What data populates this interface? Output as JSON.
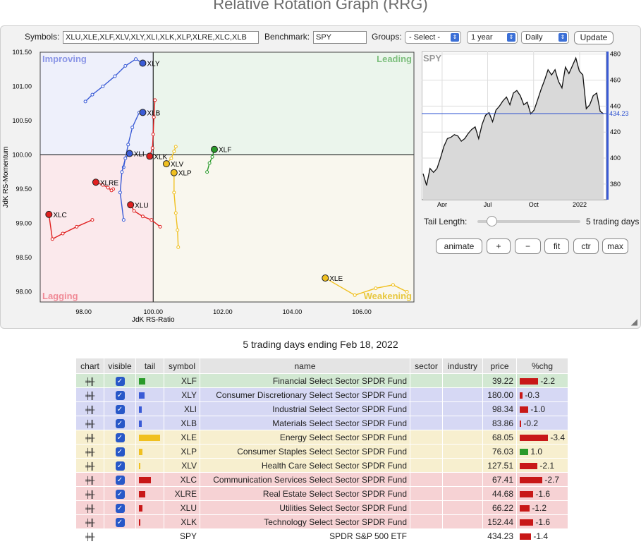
{
  "title": "Relative Rotation Graph (RRG)",
  "controls": {
    "symbols_label": "Symbols:",
    "symbols_value": "XLU,XLE,XLF,XLV,XLY,XLI,XLK,XLP,XLRE,XLC,XLB",
    "benchmark_label": "Benchmark:",
    "benchmark_value": "SPY",
    "groups_label": "Groups:",
    "groups_value": "- Select -",
    "period_value": "1 year",
    "frequency_value": "Daily",
    "update_label": "Update"
  },
  "chart_data": [
    {
      "type": "scatter",
      "title": "",
      "xlabel": "JdK RS-Ratio",
      "ylabel": "JdK RS-Momentum",
      "xlim": [
        96.75,
        107.5
      ],
      "ylim": [
        97.85,
        101.5
      ],
      "xticks": [
        "98.00",
        "100.00",
        "102.00",
        "104.00",
        "106.00"
      ],
      "yticks": [
        "101.50",
        "101.00",
        "100.50",
        "100.00",
        "99.50",
        "99.00",
        "98.50",
        "98.00"
      ],
      "quadrants": {
        "top_left": "Improving",
        "top_right": "Leading",
        "bottom_left": "Lagging",
        "bottom_right": "Weakening"
      },
      "quadrant_colors": {
        "improving": "#eef0fb",
        "leading": "#ebf5ec",
        "lagging": "#fbe9ec",
        "weakening": "#f9f7ee"
      },
      "series": [
        {
          "name": "XLY",
          "color": "#3a5bd6",
          "label": "XLY",
          "points": [
            [
              98.05,
              100.78
            ],
            [
              98.25,
              100.88
            ],
            [
              98.55,
              101.0
            ],
            [
              98.9,
              101.15
            ],
            [
              99.2,
              101.3
            ],
            [
              99.5,
              101.4
            ],
            [
              99.7,
              101.34
            ]
          ]
        },
        {
          "name": "XLB",
          "color": "#3a5bd6",
          "label": "XLB",
          "points": [
            [
              99.15,
              99.82
            ],
            [
              99.28,
              100.15
            ],
            [
              99.4,
              100.4
            ],
            [
              99.6,
              100.62
            ],
            [
              99.7,
              100.62
            ]
          ]
        },
        {
          "name": "XLI",
          "color": "#3a5bd6",
          "label": "XLI",
          "points": [
            [
              99.15,
              99.05
            ],
            [
              99.05,
              99.45
            ],
            [
              99.1,
              99.75
            ],
            [
              99.2,
              99.95
            ],
            [
              99.32,
              100.02
            ]
          ]
        },
        {
          "name": "XLK",
          "color": "#e02020",
          "label": "XLK",
          "points": [
            [
              100.05,
              100.8
            ],
            [
              100.02,
              100.55
            ],
            [
              100.0,
              100.3
            ],
            [
              99.98,
              100.1
            ],
            [
              99.9,
              99.98
            ]
          ]
        },
        {
          "name": "XLU",
          "color": "#e02020",
          "label": "XLU",
          "points": [
            [
              100.2,
              98.95
            ],
            [
              99.95,
              99.05
            ],
            [
              99.7,
              99.1
            ],
            [
              99.45,
              99.18
            ],
            [
              99.35,
              99.27
            ]
          ]
        },
        {
          "name": "XLRE",
          "color": "#e02020",
          "label": "XLRE",
          "points": [
            [
              98.85,
              99.5
            ],
            [
              98.8,
              99.48
            ],
            [
              98.7,
              99.52
            ],
            [
              98.55,
              99.56
            ],
            [
              98.35,
              99.6
            ]
          ]
        },
        {
          "name": "XLC",
          "color": "#e02020",
          "label": "XLC",
          "points": [
            [
              98.25,
              99.05
            ],
            [
              97.8,
              98.95
            ],
            [
              97.4,
              98.85
            ],
            [
              97.1,
              98.77
            ],
            [
              97.0,
              99.13
            ]
          ]
        },
        {
          "name": "XLF",
          "color": "#2a9a2a",
          "label": "XLF",
          "points": [
            [
              101.55,
              99.75
            ],
            [
              101.62,
              99.88
            ],
            [
              101.7,
              99.97
            ],
            [
              101.76,
              100.08
            ]
          ]
        },
        {
          "name": "XLV",
          "color": "#f0c020",
          "label": "XLV",
          "points": [
            [
              100.65,
              100.12
            ],
            [
              100.6,
              100.05
            ],
            [
              100.52,
              99.95
            ],
            [
              100.38,
              99.87
            ]
          ]
        },
        {
          "name": "XLP",
          "color": "#f0c020",
          "label": "XLP",
          "points": [
            [
              100.72,
              98.65
            ],
            [
              100.7,
              98.9
            ],
            [
              100.65,
              99.15
            ],
            [
              100.6,
              99.45
            ],
            [
              100.6,
              99.74
            ]
          ]
        },
        {
          "name": "XLE",
          "color": "#f0c020",
          "label": "XLE",
          "points": [
            [
              107.3,
              98.0
            ],
            [
              106.9,
              98.1
            ],
            [
              106.4,
              98.05
            ],
            [
              105.8,
              97.95
            ],
            [
              104.95,
              98.2
            ]
          ]
        }
      ]
    },
    {
      "type": "area",
      "title": "SPY",
      "xticks": [
        "Apr",
        "Jul",
        "Oct",
        "2022"
      ],
      "yticks": [
        "480",
        "460",
        "440",
        "420",
        "400",
        "380"
      ],
      "ylim": [
        368,
        482
      ],
      "current_value": "434.23",
      "x": [
        "2021-02-22",
        "2021-03-01",
        "2021-03-08",
        "2021-03-15",
        "2021-03-22",
        "2021-03-29",
        "2021-04-05",
        "2021-04-12",
        "2021-04-19",
        "2021-04-26",
        "2021-05-03",
        "2021-05-10",
        "2021-05-17",
        "2021-05-24",
        "2021-05-31",
        "2021-06-07",
        "2021-06-14",
        "2021-06-21",
        "2021-06-28",
        "2021-07-05",
        "2021-07-12",
        "2021-07-19",
        "2021-07-26",
        "2021-08-02",
        "2021-08-09",
        "2021-08-16",
        "2021-08-23",
        "2021-08-30",
        "2021-09-06",
        "2021-09-13",
        "2021-09-20",
        "2021-09-27",
        "2021-10-04",
        "2021-10-11",
        "2021-10-18",
        "2021-10-25",
        "2021-11-01",
        "2021-11-08",
        "2021-11-15",
        "2021-11-22",
        "2021-11-29",
        "2021-12-06",
        "2021-12-13",
        "2021-12-20",
        "2021-12-27",
        "2022-01-03",
        "2022-01-10",
        "2022-01-17",
        "2022-01-24",
        "2022-01-31",
        "2022-02-07",
        "2022-02-14",
        "2022-02-18"
      ],
      "values": [
        388,
        379,
        392,
        389,
        392,
        400,
        409,
        415,
        416,
        418,
        417,
        413,
        415,
        419,
        422,
        424,
        415,
        426,
        433,
        435,
        428,
        437,
        440,
        444,
        447,
        441,
        450,
        452,
        448,
        441,
        443,
        434,
        437,
        445,
        453,
        460,
        468,
        464,
        468,
        459,
        454,
        470,
        465,
        471,
        477,
        467,
        464,
        438,
        441,
        448,
        450,
        436,
        434
      ]
    }
  ],
  "spy_panel": {
    "tail_length_label": "Tail Length:",
    "tail_length_value": "5 trading days",
    "buttons": [
      "animate",
      "+",
      "−",
      "fit",
      "ctr",
      "max"
    ]
  },
  "table": {
    "caption": "5 trading days ending Feb 18, 2022",
    "headers": [
      "chart",
      "visible",
      "tail",
      "symbol",
      "name",
      "sector",
      "industry",
      "price",
      "%chg"
    ],
    "rows": [
      {
        "symbol": "XLF",
        "name": "Financial Select Sector SPDR Fund",
        "price": "39.22",
        "chg": "-2.2",
        "chg_val": -2.2,
        "tail_color": "#2a9a2a",
        "tail_len": 0.3,
        "bg": "#d2e8d2",
        "visible": true
      },
      {
        "symbol": "XLY",
        "name": "Consumer Discretionary Select Sector SPDR Fund",
        "price": "180.00",
        "chg": "-0.3",
        "chg_val": -0.3,
        "tail_color": "#3a5bd6",
        "tail_len": 0.25,
        "bg": "#d6d8f4",
        "visible": true
      },
      {
        "symbol": "XLI",
        "name": "Industrial Select Sector SPDR Fund",
        "price": "98.34",
        "chg": "-1.0",
        "chg_val": -1.0,
        "tail_color": "#3a5bd6",
        "tail_len": 0.12,
        "bg": "#d6d8f4",
        "visible": true
      },
      {
        "symbol": "XLB",
        "name": "Materials Select Sector SPDR Fund",
        "price": "83.86",
        "chg": "-0.2",
        "chg_val": -0.2,
        "tail_color": "#3a5bd6",
        "tail_len": 0.12,
        "bg": "#d6d8f4",
        "visible": true
      },
      {
        "symbol": "XLE",
        "name": "Energy Select Sector SPDR Fund",
        "price": "68.05",
        "chg": "-3.4",
        "chg_val": -3.4,
        "tail_color": "#f0c020",
        "tail_len": 1.0,
        "bg": "#f7efcf",
        "visible": true
      },
      {
        "symbol": "XLP",
        "name": "Consumer Staples Select Sector SPDR Fund",
        "price": "76.03",
        "chg": "1.0",
        "chg_val": 1.0,
        "tail_color": "#f0c020",
        "tail_len": 0.15,
        "bg": "#f7efcf",
        "visible": true
      },
      {
        "symbol": "XLV",
        "name": "Health Care Select Sector SPDR Fund",
        "price": "127.51",
        "chg": "-2.1",
        "chg_val": -2.1,
        "tail_color": "#f0c020",
        "tail_len": 0.06,
        "bg": "#f7efcf",
        "visible": true
      },
      {
        "symbol": "XLC",
        "name": "Communication Services Select Sector SPDR Fund",
        "price": "67.41",
        "chg": "-2.7",
        "chg_val": -2.7,
        "tail_color": "#c81818",
        "tail_len": 0.55,
        "bg": "#f6d2d4",
        "visible": true
      },
      {
        "symbol": "XLRE",
        "name": "Real Estate Select Sector SPDR Fund",
        "price": "44.68",
        "chg": "-1.6",
        "chg_val": -1.6,
        "tail_color": "#c81818",
        "tail_len": 0.3,
        "bg": "#f6d2d4",
        "visible": true
      },
      {
        "symbol": "XLU",
        "name": "Utilities Select Sector SPDR Fund",
        "price": "66.22",
        "chg": "-1.2",
        "chg_val": -1.2,
        "tail_color": "#c81818",
        "tail_len": 0.17,
        "bg": "#f6d2d4",
        "visible": true
      },
      {
        "symbol": "XLK",
        "name": "Technology Select Sector SPDR Fund",
        "price": "152.44",
        "chg": "-1.6",
        "chg_val": -1.6,
        "tail_color": "#c81818",
        "tail_len": 0.05,
        "bg": "#f6d2d4",
        "visible": true
      },
      {
        "symbol": "SPY",
        "name": "SPDR S&P 500 ETF",
        "price": "434.23",
        "chg": "-1.4",
        "chg_val": -1.4,
        "tail_color": "",
        "tail_len": 0,
        "bg": "#ffffff",
        "visible": false
      }
    ]
  }
}
